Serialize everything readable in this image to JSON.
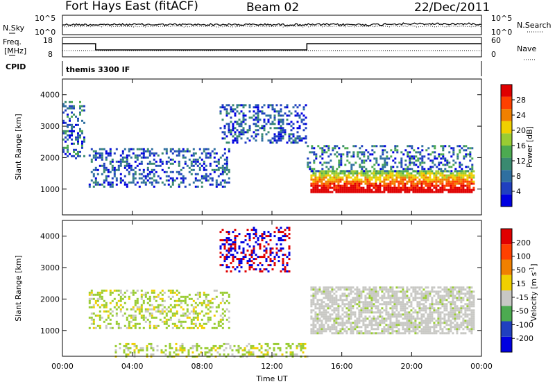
{
  "header": {
    "station": "Fort Hays East (fitACF)",
    "beam": "Beam 02",
    "date": "22/Dec/2011"
  },
  "strip_labels": {
    "nsky": "N.Sky",
    "nsearch": "N.Search",
    "freq": "Freq.",
    "mhz": "[MHz]",
    "nave": "Nave",
    "cpid": "CPID",
    "cpid_value": "themis 3300 IF",
    "noise_ticks": [
      "10^5",
      "10^0"
    ],
    "freq_ticks": [
      "18",
      "8"
    ],
    "nave_ticks": [
      "60",
      "0"
    ]
  },
  "colors": {
    "scale": [
      "#0000e0",
      "#2040c0",
      "#2f6fa0",
      "#3a8a70",
      "#4caa50",
      "#99cc33",
      "#f0d000",
      "#f08000",
      "#ff4000",
      "#e00000"
    ],
    "gray": "#c8c8c4",
    "frame": "#000000"
  },
  "chart_data": [
    {
      "type": "heatmap",
      "name": "power",
      "xlabel": "Time UT",
      "ylabel": "Slant Range [km]",
      "x_ticks": [
        "00:00",
        "04:00",
        "08:00",
        "12:00",
        "16:00",
        "20:00",
        "00:00"
      ],
      "xlim_hours": [
        0,
        24
      ],
      "ylim": [
        180,
        4500
      ],
      "y_ticks": [
        1000,
        2000,
        3000,
        4000
      ],
      "colorbar": {
        "label": "Power [dB]",
        "ticks": [
          "4",
          "8",
          "12",
          "16",
          "20",
          "24",
          "28"
        ],
        "range": [
          0,
          30
        ]
      },
      "features": [
        {
          "t": [
            14.2,
            23.6
          ],
          "r": [
            900,
            1600
          ],
          "level": "high"
        },
        {
          "t": [
            14.0,
            23.5
          ],
          "r": [
            1600,
            2400
          ],
          "level": "mid"
        },
        {
          "t": [
            1.5,
            9.5
          ],
          "r": [
            1100,
            2300
          ],
          "level": "low"
        },
        {
          "t": [
            0.0,
            1.2
          ],
          "r": [
            2000,
            3800
          ],
          "level": "mid"
        },
        {
          "t": [
            9.0,
            14.0
          ],
          "r": [
            2500,
            3700
          ],
          "level": "low"
        }
      ]
    },
    {
      "type": "heatmap",
      "name": "velocity",
      "xlabel": "Time UT",
      "ylabel": "Slant Range [km]",
      "x_ticks": [
        "00:00",
        "04:00",
        "08:00",
        "12:00",
        "16:00",
        "20:00",
        "00:00"
      ],
      "xlim_hours": [
        0,
        24
      ],
      "ylim": [
        180,
        4500
      ],
      "y_ticks": [
        1000,
        2000,
        3000,
        4000
      ],
      "colorbar": {
        "label": "Velocity [m s",
        "label_sup": "-1",
        "label_end": "]",
        "ticks": [
          "200",
          "100",
          "50",
          "15",
          "-15",
          "-50",
          "-100",
          "-200"
        ],
        "range": [
          -250,
          250
        ]
      },
      "features": [
        {
          "t": [
            14.2,
            23.6
          ],
          "r": [
            900,
            2400
          ],
          "level": "ground"
        },
        {
          "t": [
            1.5,
            9.5
          ],
          "r": [
            1100,
            2300
          ],
          "level": "neg"
        },
        {
          "t": [
            9.0,
            13.0
          ],
          "r": [
            2900,
            4300
          ],
          "level": "pos"
        },
        {
          "t": [
            3.0,
            14.0
          ],
          "r": [
            200,
            600
          ],
          "level": "neg"
        }
      ]
    }
  ]
}
